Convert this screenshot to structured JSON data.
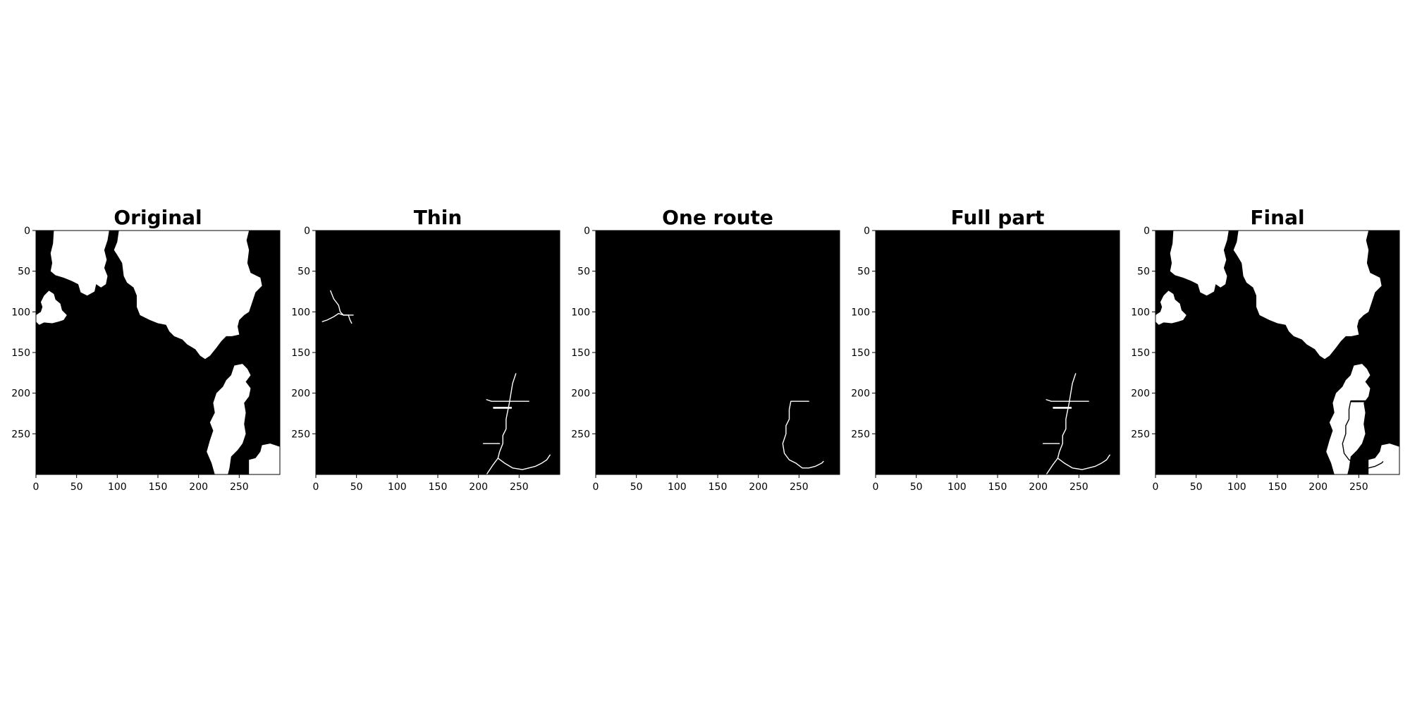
{
  "chart_data": [
    {
      "type": "heatmap",
      "title": "Original",
      "content": "binary_mask",
      "xlim": [
        0,
        300
      ],
      "ylim": [
        300,
        0
      ],
      "xticks": [
        0,
        50,
        100,
        150,
        200,
        250
      ],
      "yticks": [
        0,
        50,
        100,
        150,
        200,
        250
      ],
      "colormap": [
        "#000000",
        "#ffffff"
      ]
    },
    {
      "type": "heatmap",
      "title": "Thin",
      "content": "skeleton_all",
      "xlim": [
        0,
        300
      ],
      "ylim": [
        300,
        0
      ],
      "xticks": [
        0,
        50,
        100,
        150,
        200,
        250
      ],
      "yticks": [
        0,
        50,
        100,
        150,
        200,
        250
      ],
      "colormap": [
        "#000000",
        "#ffffff"
      ]
    },
    {
      "type": "heatmap",
      "title": "One route",
      "content": "single_route",
      "xlim": [
        0,
        300
      ],
      "ylim": [
        300,
        0
      ],
      "xticks": [
        0,
        50,
        100,
        150,
        200,
        250
      ],
      "yticks": [
        0,
        50,
        100,
        150,
        200,
        250
      ],
      "colormap": [
        "#000000",
        "#ffffff"
      ]
    },
    {
      "type": "heatmap",
      "title": "Full part",
      "content": "skeleton_part",
      "xlim": [
        0,
        300
      ],
      "ylim": [
        300,
        0
      ],
      "xticks": [
        0,
        50,
        100,
        150,
        200,
        250
      ],
      "yticks": [
        0,
        50,
        100,
        150,
        200,
        250
      ],
      "colormap": [
        "#000000",
        "#ffffff"
      ]
    },
    {
      "type": "heatmap",
      "title": "Final",
      "content": "mask_with_route",
      "xlim": [
        0,
        300
      ],
      "ylim": [
        300,
        0
      ],
      "xticks": [
        0,
        50,
        100,
        150,
        200,
        250
      ],
      "yticks": [
        0,
        50,
        100,
        150,
        200,
        250
      ],
      "colormap": [
        "#000000",
        "#ffffff"
      ]
    }
  ]
}
